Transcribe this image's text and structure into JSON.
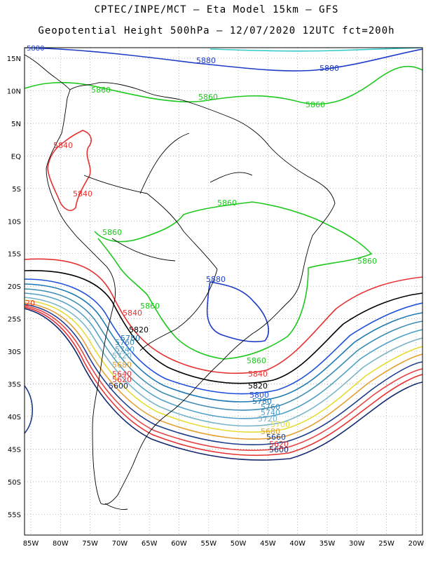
{
  "header": {
    "line1": "CPTEC/INPE/MCT –  Eta Model 15km – GFS",
    "line2": "Geopotential Height 500hPa – 12/07/2020 12UTC fct=200h"
  },
  "axes": {
    "lat_labels": [
      "15N",
      "10N",
      "5N",
      "EQ",
      "5S",
      "10S",
      "15S",
      "20S",
      "25S",
      "30S",
      "35S",
      "40S",
      "45S",
      "50S",
      "55S"
    ],
    "lon_labels": [
      "85W",
      "80W",
      "75W",
      "70W",
      "65W",
      "60W",
      "55W",
      "50W",
      "45W",
      "40W",
      "35W",
      "30W",
      "25W",
      "20W"
    ]
  },
  "map": {
    "contour_levels": [
      5620,
      5640,
      5660,
      5680,
      5700,
      5720,
      5740,
      5760,
      5780,
      5800,
      5820,
      5840,
      5860,
      5880
    ],
    "labels": [
      {
        "text": "5880",
        "color": "#1e3cc8"
      },
      {
        "text": "5880",
        "color": "#1e3cc8"
      },
      {
        "text": "5880",
        "color": "#1e3cc8"
      },
      {
        "text": "5880",
        "color": "#1e3cc8"
      },
      {
        "text": "5860",
        "color": "#1ec81e"
      },
      {
        "text": "5860",
        "color": "#1ec81e"
      },
      {
        "text": "5860",
        "color": "#1ec81e"
      },
      {
        "text": "5860",
        "color": "#1ec81e"
      },
      {
        "text": "5860",
        "color": "#1ec81e"
      },
      {
        "text": "5860",
        "color": "#1ec81e"
      },
      {
        "text": "5860",
        "color": "#1ec81e"
      },
      {
        "text": "5860",
        "color": "#1ec81e"
      },
      {
        "text": "5840",
        "color": "#e63232"
      },
      {
        "text": "5840",
        "color": "#e63232"
      },
      {
        "text": "5840",
        "color": "#e63232"
      },
      {
        "text": "5840",
        "color": "#e63232"
      },
      {
        "text": "5820",
        "color": "#000000"
      },
      {
        "text": "5820",
        "color": "#000000"
      },
      {
        "text": "5800",
        "color": "#1e50dc"
      },
      {
        "text": "5780",
        "color": "#1e78b4"
      },
      {
        "text": "5780",
        "color": "#1e78b4"
      },
      {
        "text": "5760",
        "color": "#3c8cb4"
      },
      {
        "text": "5760",
        "color": "#3c8cb4"
      },
      {
        "text": "5740",
        "color": "#50a0c8"
      },
      {
        "text": "5740",
        "color": "#50a0c8"
      },
      {
        "text": "5720",
        "color": "#78b4c8"
      },
      {
        "text": "5720",
        "color": "#78b4c8"
      },
      {
        "text": "5700",
        "color": "#e6dc32"
      },
      {
        "text": "5680",
        "color": "#e6a032"
      },
      {
        "text": "5680",
        "color": "#e6a032"
      },
      {
        "text": "5660",
        "color": "#1e3c8c"
      },
      {
        "text": "5640",
        "color": "#e64646"
      },
      {
        "text": "5620",
        "color": "#e63232"
      },
      {
        "text": "5620",
        "color": "#e63232"
      },
      {
        "text": "5600",
        "color": "#14286e"
      },
      {
        "text": "5600",
        "color": "#14286e"
      },
      {
        "text": "20",
        "color": "#e63232"
      }
    ],
    "colors": {
      "c5620": "#e63232",
      "c5640": "#e64646",
      "c5660": "#1e3c8c",
      "c5680": "#e6a032",
      "c5700": "#e6dc32",
      "c5720": "#78b4c8",
      "c5740": "#50a0c8",
      "c5760": "#3c8cb4",
      "c5780": "#1e78b4",
      "c5800": "#1e50dc",
      "c5820": "#000000",
      "c5840": "#e63232",
      "c5860": "#1ec81e",
      "c5880": "#1e3cc8",
      "c5900": "#32c8c8"
    }
  }
}
